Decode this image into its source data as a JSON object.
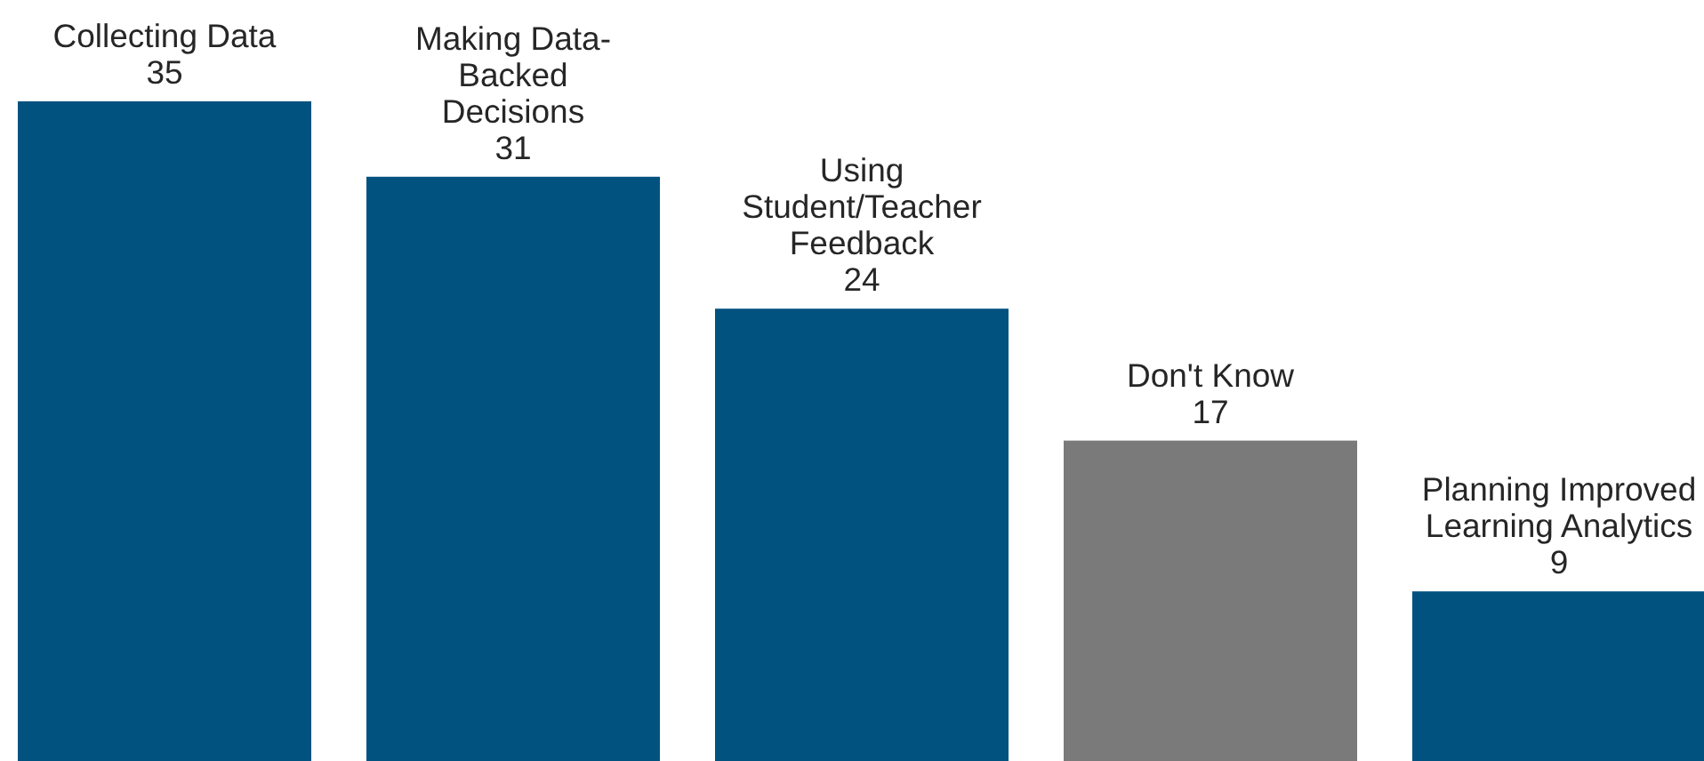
{
  "chart_data": {
    "type": "bar",
    "categories": [
      "Collecting Data",
      "Making Data-\nBacked\nDecisions",
      "Using\nStudent/Teacher\nFeedback",
      "Don't Know",
      "Planning Improved\nLearning Analytics"
    ],
    "values": [
      35,
      31,
      24,
      17,
      9
    ],
    "colors": [
      "#02527f",
      "#02527f",
      "#02527f",
      "#7a7a7a",
      "#02527f"
    ],
    "data_labels": true
  }
}
